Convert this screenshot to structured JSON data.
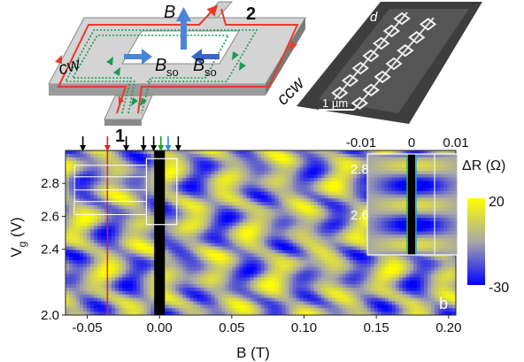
{
  "panel_a": {
    "labels": {
      "B": "B",
      "terminal_2": "2",
      "terminal_1": "1",
      "cw": "cw",
      "ccw": "ccw",
      "bso": "B",
      "bso_sub": "so"
    },
    "colors": {
      "cw_path": "#e83a2a",
      "ccw_path": "#1a9a55",
      "field_arrow": "#4a86d8",
      "device": "#b8b8b8"
    }
  },
  "panel_d": {
    "label": "d",
    "scalebar": "1 µm"
  },
  "panel_b": {
    "label": "b",
    "colorbar": {
      "title": "ΔR (Ω)",
      "max_label": "20",
      "min_label": "-30",
      "max_color": "#ffff00",
      "mid_color": "#a8a8a8",
      "min_color": "#0000ff"
    },
    "inset": {
      "x_ticks": [
        "-0.01",
        "0",
        "0.01"
      ],
      "y_ticks": [
        "2.8",
        "2.6"
      ]
    },
    "marker_arrows": [
      {
        "x": -0.053,
        "color": "#000000"
      },
      {
        "x": -0.036,
        "color": "#e02020"
      },
      {
        "x": -0.023,
        "color": "#000000"
      },
      {
        "x": -0.011,
        "color": "#000000"
      },
      {
        "x": -0.004,
        "color": "#000000"
      },
      {
        "x": 0.001,
        "color": "#20a020"
      },
      {
        "x": 0.006,
        "color": "#2090e0"
      },
      {
        "x": 0.013,
        "color": "#000000"
      }
    ],
    "red_line_x": -0.036
  },
  "chart_data": {
    "type": "heatmap",
    "xlabel": "B (T)",
    "ylabel": "Vg (V)",
    "xlim": [
      -0.065,
      0.205
    ],
    "ylim": [
      2.0,
      3.0
    ],
    "x_ticks": [
      "-0.05",
      "0.00",
      "0.05",
      "0.10",
      "0.15",
      "0.20"
    ],
    "x_tick_values": [
      -0.05,
      0.0,
      0.05,
      0.1,
      0.15,
      0.2
    ],
    "y_ticks": [
      "2.0",
      "2.4",
      "2.6",
      "2.8"
    ],
    "y_tick_values": [
      2.0,
      2.4,
      2.6,
      2.8
    ],
    "zlim": [
      -30,
      20
    ]
  }
}
